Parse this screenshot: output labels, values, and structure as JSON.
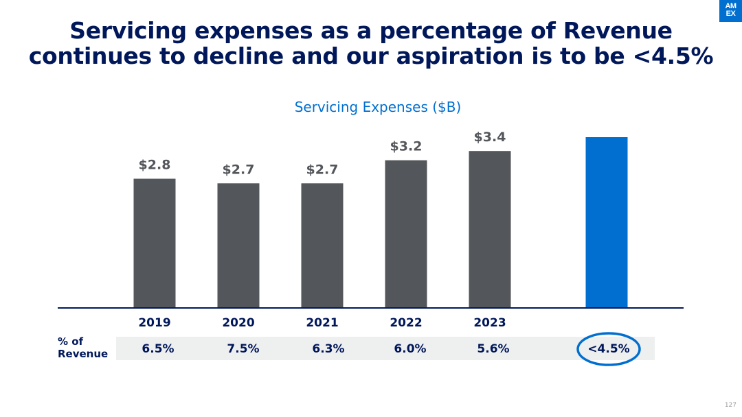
{
  "header": {
    "title_line1": "Servicing expenses as a percentage of Revenue",
    "title_line2": "continues to decline and our aspiration is to be <4.5%",
    "logo_top": "AM",
    "logo_bottom": "EX"
  },
  "table": {
    "row_label_line1": "% of",
    "row_label_line2": "Revenue"
  },
  "footer": {
    "page_number": "127"
  },
  "colors": {
    "bar": "#53565a",
    "target_bar": "#006fcf",
    "title": "#00175a",
    "row_band": "#eeefef"
  },
  "chart_data": {
    "type": "bar",
    "title": "Servicing Expenses ($B)",
    "categories": [
      "2019",
      "2020",
      "2021",
      "2022",
      "2023",
      ""
    ],
    "values": [
      2.8,
      2.7,
      2.7,
      3.2,
      3.4,
      3.7
    ],
    "value_labels": [
      "$2.8",
      "$2.7",
      "$2.7",
      "$3.2",
      "$3.4",
      ""
    ],
    "pct_of_revenue": [
      "6.5%",
      "7.5%",
      "6.3%",
      "6.0%",
      "5.6%",
      "<4.5%"
    ],
    "highlight_index": 5,
    "ylim": [
      0,
      3.7
    ],
    "grid": false
  }
}
